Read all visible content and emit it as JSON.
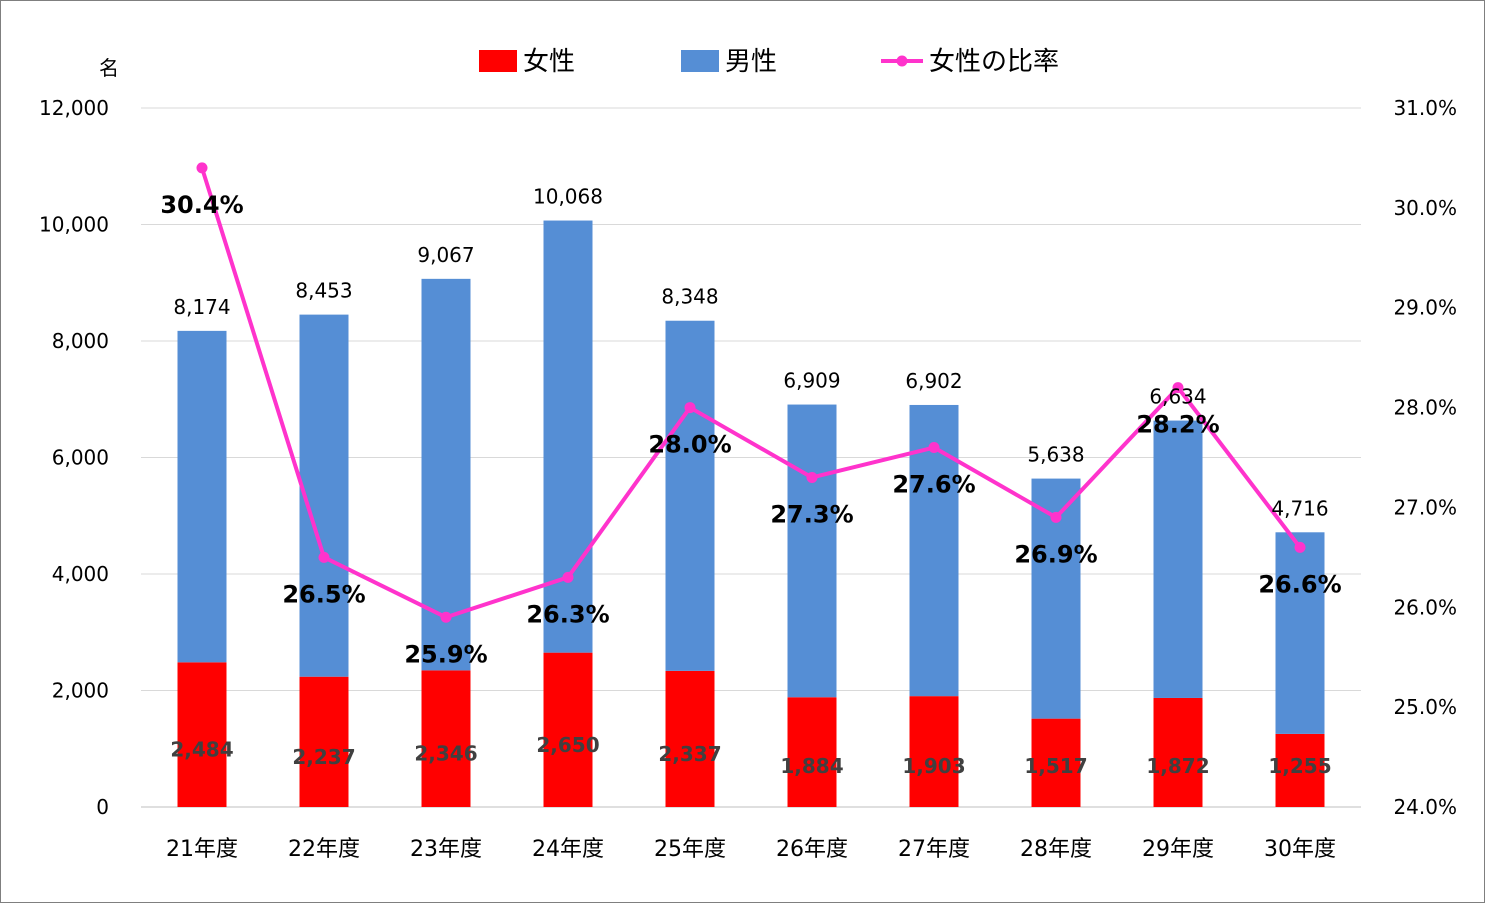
{
  "chart_data": {
    "type": "bar",
    "stacked": true,
    "unit_label": "名",
    "categories": [
      "21年度",
      "22年度",
      "23年度",
      "24年度",
      "25年度",
      "26年度",
      "27年度",
      "28年度",
      "29年度",
      "30年度"
    ],
    "series": [
      {
        "name": "女性",
        "type": "bar",
        "color": "#ff0000",
        "values": [
          2484,
          2237,
          2346,
          2650,
          2337,
          1884,
          1903,
          1517,
          1872,
          1255
        ],
        "labels": [
          "2,484",
          "2,237",
          "2,346",
          "2,650",
          "2,337",
          "1,884",
          "1,903",
          "1,517",
          "1,872",
          "1,255"
        ]
      },
      {
        "name": "男性",
        "type": "bar",
        "color": "#558ed5",
        "values": [
          5690,
          6216,
          6721,
          7418,
          6011,
          5025,
          4999,
          4121,
          4762,
          3461
        ]
      },
      {
        "name": "女性の比率",
        "type": "line",
        "axis": "right",
        "color": "#ff33cc",
        "values": [
          30.4,
          26.5,
          25.9,
          26.3,
          28.0,
          27.3,
          27.6,
          26.9,
          28.2,
          26.6
        ],
        "labels": [
          "30.4%",
          "26.5%",
          "25.9%",
          "26.3%",
          "28.0%",
          "27.3%",
          "27.6%",
          "26.9%",
          "28.2%",
          "26.6%"
        ]
      }
    ],
    "totals": [
      8174,
      8453,
      9067,
      10068,
      8348,
      6909,
      6902,
      5638,
      6634,
      4716
    ],
    "total_labels": [
      "8,174",
      "8,453",
      "9,067",
      "10,068",
      "8,348",
      "6,909",
      "6,902",
      "5,638",
      "6,634",
      "4,716"
    ],
    "y_left": {
      "min": 0,
      "max": 12000,
      "ticks": [
        "0",
        "2,000",
        "4,000",
        "6,000",
        "8,000",
        "10,000",
        "12,000"
      ],
      "tick_values": [
        0,
        2000,
        4000,
        6000,
        8000,
        10000,
        12000
      ]
    },
    "y_right": {
      "min": 24.0,
      "max": 31.0,
      "ticks": [
        "24.0%",
        "25.0%",
        "26.0%",
        "27.0%",
        "28.0%",
        "29.0%",
        "30.0%",
        "31.0%"
      ],
      "tick_values": [
        24,
        25,
        26,
        27,
        28,
        29,
        30,
        31
      ]
    },
    "grid": true,
    "legend_position": "top"
  }
}
